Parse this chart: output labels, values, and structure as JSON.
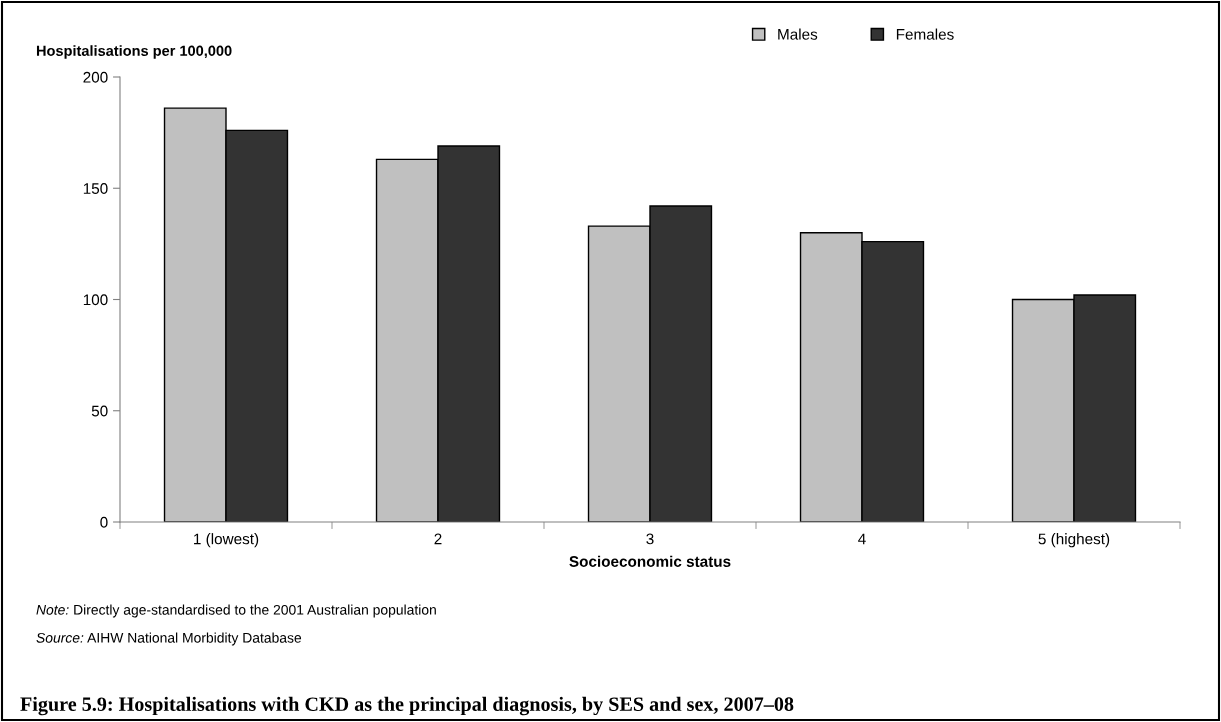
{
  "chart_data": {
    "type": "bar",
    "title": "Figure 5.9: Hospitalisations with CKD as the principal diagnosis, by SES and sex, 2007–08",
    "xlabel": "Socioeconomic status",
    "ylabel": "Hospitalisations per 100,000",
    "categories": [
      "1 (lowest)",
      "2",
      "3",
      "4",
      "5 (highest)"
    ],
    "series": [
      {
        "name": "Males",
        "color": "#c0c0c0",
        "values": [
          186,
          163,
          133,
          130,
          100
        ]
      },
      {
        "name": "Females",
        "color": "#333333",
        "values": [
          176,
          169,
          142,
          126,
          102
        ]
      }
    ],
    "ylim": [
      0,
      200
    ],
    "yticks": [
      0,
      50,
      100,
      150,
      200
    ],
    "grid": false,
    "legend": "top right",
    "annotations": [
      "Note: Directly age-standardised to the 2001 Australian population",
      "Source: AIHW National Morbidity Database"
    ]
  }
}
